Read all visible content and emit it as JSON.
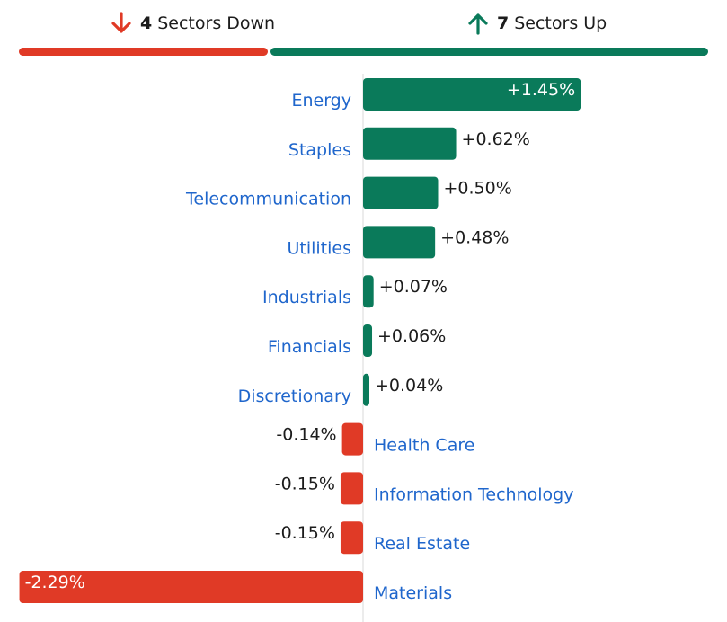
{
  "summary": {
    "down_count": "4",
    "down_label": "Sectors Down",
    "up_count": "7",
    "up_label": "Sectors Up",
    "down_icon": "arrow-down-icon",
    "up_icon": "arrow-up-icon"
  },
  "colors": {
    "positive": "#0a7a5a",
    "negative": "#e03a26",
    "label_link": "#1f66cc",
    "axis": "#d9d9d9"
  },
  "chart_data": {
    "type": "bar",
    "orientation": "horizontal",
    "categories": [
      "Energy",
      "Staples",
      "Telecommunication",
      "Utilities",
      "Industrials",
      "Financials",
      "Discretionary",
      "Health Care",
      "Information Technology",
      "Real Estate",
      "Materials"
    ],
    "values": [
      1.45,
      0.62,
      0.5,
      0.48,
      0.07,
      0.06,
      0.04,
      -0.14,
      -0.15,
      -0.15,
      -2.29
    ],
    "value_labels": [
      "+1.45%",
      "+0.62%",
      "+0.50%",
      "+0.48%",
      "+0.07%",
      "+0.06%",
      "+0.04%",
      "-0.14%",
      "-0.15%",
      "-0.15%",
      "-2.29%"
    ],
    "title": "",
    "xlabel": "",
    "ylabel": "",
    "grid": false
  }
}
